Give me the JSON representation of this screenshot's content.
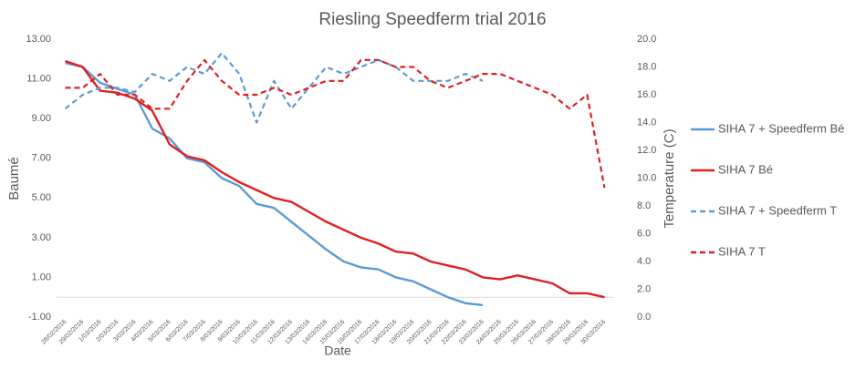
{
  "chart_data": {
    "type": "line",
    "title": "Riesling Speedferm trial 2016",
    "x_label": "Date",
    "y_label": "Baumé",
    "y2_label": "Temperature (C)",
    "categories": [
      "28/02/2016",
      "29/02/2016",
      "1/03/2016",
      "2/03/2016",
      "3/03/2016",
      "4/03/2016",
      "5/03/2016",
      "6/03/2016",
      "7/03/2016",
      "8/03/2016",
      "9/03/2016",
      "10/03/2016",
      "11/03/2016",
      "12/03/2016",
      "13/03/2016",
      "14/03/2016",
      "15/03/2016",
      "16/03/2016",
      "17/03/2016",
      "18/03/2016",
      "19/03/2016",
      "20/03/2016",
      "21/03/2016",
      "22/03/2016",
      "23/03/2016",
      "24/03/2016",
      "25/03/2016",
      "26/03/2016",
      "27/03/2016",
      "28/03/2016",
      "29/03/2016",
      "30/03/2016"
    ],
    "ylim": [
      -1,
      13
    ],
    "yticks": [
      {
        "value": -1,
        "label": "-1.00"
      },
      {
        "value": 1,
        "label": "1.00"
      },
      {
        "value": 3,
        "label": "3.00"
      },
      {
        "value": 5,
        "label": "5.00"
      },
      {
        "value": 7,
        "label": "7.00"
      },
      {
        "value": 9,
        "label": "9.00"
      },
      {
        "value": 11,
        "label": "11.00"
      },
      {
        "value": 13,
        "label": "13.00"
      }
    ],
    "y2lim": [
      0,
      20
    ],
    "y2ticks": [
      {
        "value": 0,
        "label": "0.0"
      },
      {
        "value": 2,
        "label": "2.0"
      },
      {
        "value": 4,
        "label": "4.0"
      },
      {
        "value": 6,
        "label": "6.0"
      },
      {
        "value": 8,
        "label": "8.0"
      },
      {
        "value": 10,
        "label": "10.0"
      },
      {
        "value": 12,
        "label": "12.0"
      },
      {
        "value": 14,
        "label": "14.0"
      },
      {
        "value": 16,
        "label": "16.0"
      },
      {
        "value": 18,
        "label": "18.0"
      },
      {
        "value": 20,
        "label": "20.0"
      }
    ],
    "legend": "right",
    "series": [
      {
        "name": "SIHA 7 + Speedferm Bé",
        "color": "#5b9bd5",
        "dashed": false,
        "axis": "y",
        "values": [
          11.8,
          11.6,
          10.8,
          10.5,
          10.2,
          8.5,
          8.0,
          7.0,
          6.8,
          6.0,
          5.6,
          4.7,
          4.5,
          3.8,
          3.1,
          2.4,
          1.8,
          1.5,
          1.4,
          1.0,
          0.8,
          0.4,
          0.0,
          -0.3,
          -0.4,
          null,
          null,
          null,
          null,
          null,
          null,
          null
        ]
      },
      {
        "name": "SIHA 7 Bé",
        "color": "#e02020",
        "dashed": false,
        "axis": "y",
        "values": [
          11.9,
          11.6,
          10.4,
          10.3,
          10.0,
          9.4,
          7.7,
          7.1,
          6.9,
          6.3,
          5.8,
          5.4,
          5.0,
          4.8,
          4.3,
          3.8,
          3.4,
          3.0,
          2.7,
          2.3,
          2.2,
          1.8,
          1.6,
          1.4,
          1.0,
          0.9,
          1.1,
          0.9,
          0.7,
          0.2,
          0.2,
          0.0
        ]
      },
      {
        "name": "SIHA 7 + Speedferm T",
        "color": "#5b9bd5",
        "dashed": true,
        "axis": "y2",
        "values": [
          15.0,
          16.0,
          16.5,
          16.5,
          16.2,
          17.5,
          17.0,
          18.0,
          17.5,
          19.0,
          17.5,
          14.0,
          17.0,
          15.0,
          16.5,
          18.0,
          17.5,
          18.0,
          18.5,
          18.0,
          17.0,
          17.0,
          17.0,
          17.5,
          17.0,
          null,
          null,
          null,
          null,
          null,
          null,
          null
        ]
      },
      {
        "name": "SIHA 7 T",
        "color": "#e02020",
        "dashed": true,
        "axis": "y2",
        "values": [
          16.5,
          16.5,
          17.5,
          16.0,
          16.0,
          15.0,
          15.0,
          17.0,
          18.5,
          17.0,
          16.0,
          16.0,
          16.5,
          16.0,
          16.5,
          17.0,
          17.0,
          18.5,
          18.5,
          18.0,
          18.0,
          17.0,
          16.5,
          17.0,
          17.5,
          17.5,
          17.0,
          16.5,
          16.0,
          15.0,
          16.0,
          9.3
        ]
      }
    ]
  }
}
